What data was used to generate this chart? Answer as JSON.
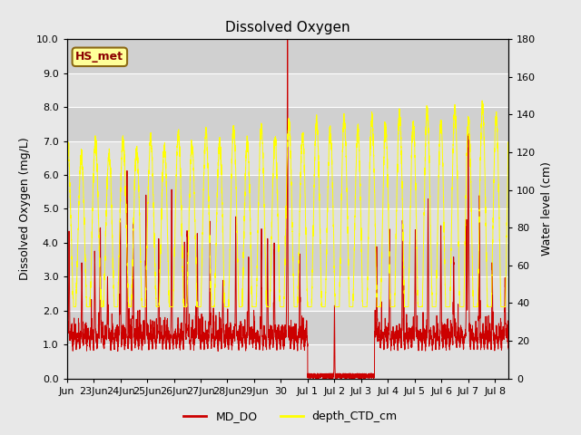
{
  "title": "Dissolved Oxygen",
  "ylabel_left": "Dissolved Oxygen (mg/L)",
  "ylabel_right": "Water level (cm)",
  "ylim_left": [
    0.0,
    10.0
  ],
  "ylim_right": [
    0,
    180
  ],
  "yticks_left": [
    0.0,
    1.0,
    2.0,
    3.0,
    4.0,
    5.0,
    6.0,
    7.0,
    8.0,
    9.0,
    10.0
  ],
  "yticks_right": [
    0,
    20,
    40,
    60,
    80,
    100,
    120,
    140,
    160,
    180
  ],
  "annotation_text": "HS_met",
  "annotation_color": "#8B0000",
  "annotation_box_color": "#FFFF99",
  "annotation_box_edge": "#8B6914",
  "bg_color": "#E8E8E8",
  "plot_bg_color_dark": "#D0D0D0",
  "plot_bg_color_light": "#E8E8E8",
  "line_color_DO": "#CC0000",
  "line_color_depth": "#FFFF00",
  "legend_labels": [
    "MD_DO",
    "depth_CTD_cm"
  ],
  "title_fontsize": 11,
  "label_fontsize": 9,
  "tick_fontsize": 8,
  "grid_color": "#FFFFFF",
  "n_points": 5000
}
